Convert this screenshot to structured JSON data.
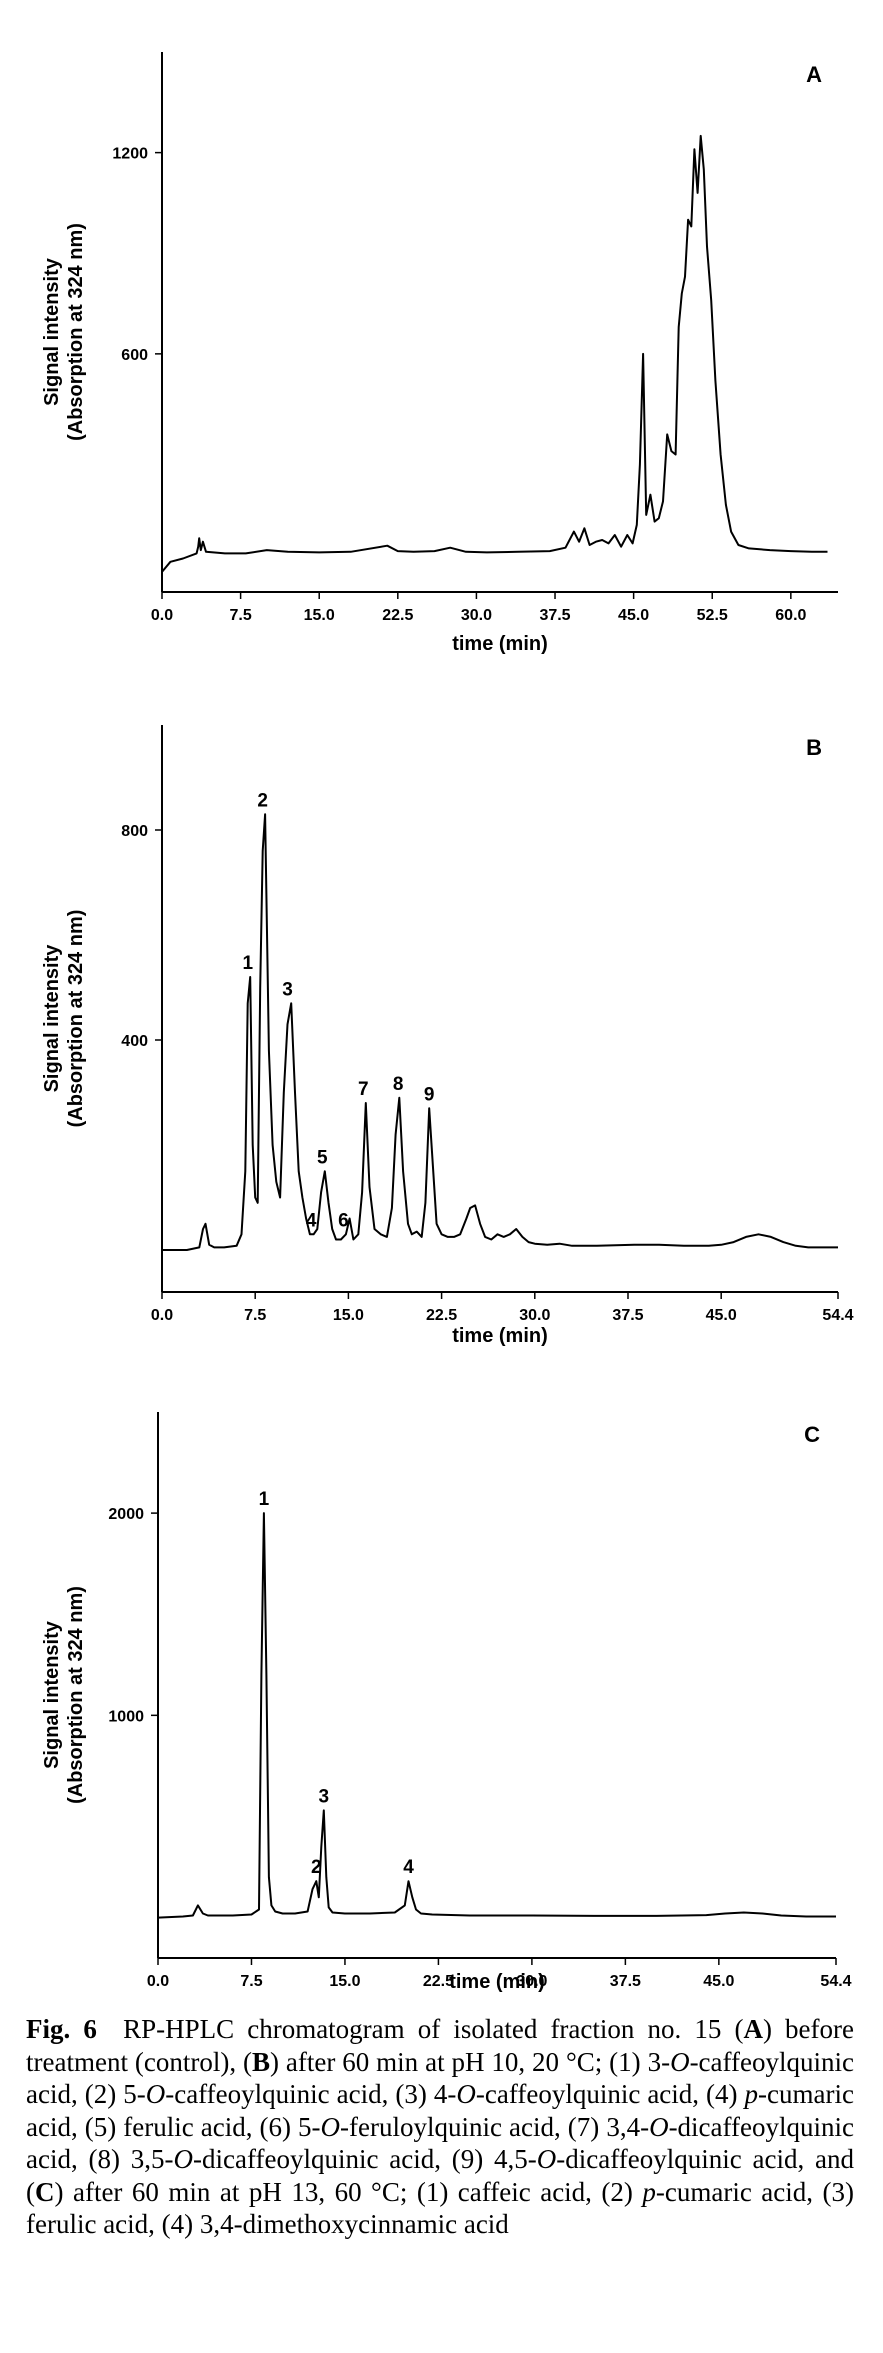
{
  "chart_data": [
    {
      "type": "line",
      "panel": "A",
      "title": "",
      "xlabel": "time (min)",
      "ylabel": [
        "Signal intensity",
        "(Absorption at 324 nm)"
      ],
      "xlim": [
        0,
        64.5
      ],
      "ylim": [
        -110,
        1500
      ],
      "x_ticks": [
        "0.0",
        "7.5",
        "15.0",
        "22.5",
        "30.0",
        "37.5",
        "45.0",
        "52.5",
        "60.0"
      ],
      "y_ticks": [
        "600",
        "1200"
      ],
      "x": [
        0,
        0.8,
        2,
        3.3,
        3.45,
        3.55,
        3.7,
        3.9,
        4.2,
        6,
        8,
        10,
        12,
        15,
        18,
        21.5,
        22.5,
        24,
        26,
        27.5,
        29,
        31,
        34,
        37,
        38.5,
        39.3,
        39.8,
        40.3,
        40.8,
        41.4,
        42,
        42.6,
        43.2,
        43.8,
        44.4,
        44.9,
        45.3,
        45.6,
        45.9,
        46.2,
        46.6,
        47,
        47.4,
        47.8,
        48.2,
        48.6,
        49,
        49.3,
        49.6,
        49.9,
        50.2,
        50.5,
        50.8,
        51.1,
        51.4,
        51.7,
        52,
        52.4,
        52.8,
        53.3,
        53.8,
        54.3,
        55,
        56,
        58,
        60,
        62,
        63.5
      ],
      "values": [
        -50,
        -20,
        -10,
        5,
        25,
        50,
        15,
        40,
        10,
        5,
        5,
        15,
        10,
        8,
        10,
        28,
        12,
        10,
        12,
        22,
        10,
        8,
        10,
        12,
        22,
        70,
        40,
        80,
        30,
        40,
        45,
        35,
        60,
        25,
        60,
        35,
        90,
        270,
        600,
        120,
        180,
        100,
        110,
        160,
        360,
        310,
        300,
        680,
        780,
        830,
        1000,
        980,
        1210,
        1080,
        1250,
        1150,
        920,
        760,
        520,
        300,
        150,
        70,
        30,
        20,
        15,
        12,
        10,
        10
      ],
      "panel_label": "A"
    },
    {
      "type": "line",
      "panel": "B",
      "title": "",
      "xlabel": "time (min)",
      "ylabel": [
        "Signal intensity",
        "(Absorption at 324 nm)"
      ],
      "xlim": [
        0,
        54.4
      ],
      "ylim": [
        -80,
        1000
      ],
      "x_ticks": [
        "0.0",
        "7.5",
        "15.0",
        "22.5",
        "30.0",
        "37.5",
        "45.0",
        "54.4"
      ],
      "y_ticks": [
        "400",
        "800"
      ],
      "x": [
        0,
        2,
        3,
        3.3,
        3.5,
        3.8,
        4.2,
        5,
        6,
        6.4,
        6.7,
        6.9,
        7.1,
        7.3,
        7.5,
        7.7,
        7.9,
        8.1,
        8.3,
        8.6,
        8.9,
        9.2,
        9.5,
        9.8,
        10.1,
        10.4,
        10.7,
        11,
        11.3,
        11.6,
        11.9,
        12.2,
        12.5,
        12.8,
        13.1,
        13.4,
        13.7,
        14,
        14.4,
        14.8,
        15.1,
        15.4,
        15.8,
        16.1,
        16.4,
        16.7,
        17.1,
        17.6,
        18.1,
        18.5,
        18.8,
        19.1,
        19.4,
        19.8,
        20.1,
        20.5,
        20.9,
        21.2,
        21.5,
        21.8,
        22.1,
        22.5,
        23,
        23.5,
        24,
        24.5,
        24.8,
        25.2,
        25.6,
        26,
        26.5,
        27,
        27.5,
        28,
        28.5,
        29,
        29.5,
        30,
        31,
        32,
        33,
        35,
        38,
        40,
        42,
        44,
        45,
        46,
        47,
        48,
        49,
        50,
        51,
        52,
        53,
        54.4
      ],
      "values": [
        0,
        0,
        5,
        40,
        50,
        10,
        5,
        5,
        8,
        30,
        150,
        470,
        520,
        200,
        100,
        90,
        500,
        760,
        830,
        380,
        200,
        130,
        100,
        300,
        430,
        470,
        300,
        150,
        100,
        60,
        30,
        30,
        40,
        110,
        150,
        90,
        40,
        20,
        20,
        30,
        60,
        20,
        30,
        110,
        280,
        120,
        40,
        30,
        25,
        80,
        220,
        290,
        150,
        50,
        30,
        35,
        25,
        90,
        270,
        160,
        50,
        30,
        25,
        25,
        30,
        60,
        80,
        85,
        50,
        25,
        20,
        30,
        25,
        30,
        40,
        25,
        15,
        12,
        10,
        12,
        8,
        8,
        10,
        10,
        8,
        8,
        10,
        15,
        25,
        30,
        25,
        15,
        8,
        5,
        5,
        5
      ],
      "data_labels": [
        {
          "label": "1",
          "x": 6.9
        },
        {
          "label": "2",
          "x": 8.1
        },
        {
          "label": "3",
          "x": 10.1
        },
        {
          "label": "4",
          "x": 12.0
        },
        {
          "label": "5",
          "x": 12.9
        },
        {
          "label": "6",
          "x": 14.6
        },
        {
          "label": "7",
          "x": 16.2
        },
        {
          "label": "8",
          "x": 19.0
        },
        {
          "label": "9",
          "x": 21.5
        }
      ],
      "panel_label": "B"
    },
    {
      "type": "line",
      "panel": "C",
      "title": "",
      "xlabel": "time (min)",
      "ylabel": [
        "Signal intensity",
        "(Absorption at 324 nm)"
      ],
      "xlim": [
        0,
        54.4
      ],
      "ylim": [
        -200,
        2500
      ],
      "x_ticks": [
        "0.0",
        "7.5",
        "15.0",
        "22.5",
        "30.0",
        "37.5",
        "45.0",
        "54.4"
      ],
      "y_ticks": [
        "1000",
        "2000"
      ],
      "x": [
        0,
        2,
        2.8,
        3.2,
        3.6,
        4,
        6,
        7.5,
        8.1,
        8.3,
        8.5,
        8.7,
        8.9,
        9.1,
        9.4,
        10,
        11,
        12,
        12.4,
        12.7,
        12.9,
        13.1,
        13.3,
        13.5,
        13.7,
        14,
        15,
        17,
        19,
        19.8,
        20.1,
        20.4,
        20.7,
        21.1,
        22,
        25,
        30,
        35,
        40,
        44,
        45.5,
        47,
        48.5,
        50,
        52,
        54.4
      ],
      "values": [
        0,
        5,
        10,
        60,
        20,
        10,
        10,
        15,
        40,
        1200,
        2000,
        1200,
        200,
        60,
        30,
        20,
        20,
        30,
        140,
        180,
        100,
        350,
        530,
        200,
        50,
        25,
        20,
        20,
        25,
        60,
        180,
        100,
        40,
        20,
        15,
        10,
        10,
        8,
        8,
        12,
        20,
        25,
        20,
        10,
        5,
        5
      ],
      "data_labels": [
        {
          "label": "1",
          "x": 8.5
        },
        {
          "label": "2",
          "x": 12.7
        },
        {
          "label": "3",
          "x": 13.3
        },
        {
          "label": "4",
          "x": 20.1
        }
      ],
      "panel_label": "C"
    }
  ],
  "caption": {
    "label": "Fig. 6",
    "segments": [
      {
        "t": "RP-HPLC chromatogram of isolated fraction no. 15 ("
      },
      {
        "t": "A",
        "b": true
      },
      {
        "t": ") before treatment (control), ("
      },
      {
        "t": "B",
        "b": true
      },
      {
        "t": ") after 60 min at pH 10, 20 °C; (1) 3-"
      },
      {
        "t": "O",
        "i": true
      },
      {
        "t": "-caffeoylquinic acid, (2) 5-"
      },
      {
        "t": "O",
        "i": true
      },
      {
        "t": "-caffeoylquinic acid, (3) 4-"
      },
      {
        "t": "O",
        "i": true
      },
      {
        "t": "-caffeoylquinic acid, (4) "
      },
      {
        "t": "p",
        "i": true
      },
      {
        "t": "-cumaric acid, (5) ferulic acid, (6) 5-"
      },
      {
        "t": "O",
        "i": true
      },
      {
        "t": "-feruloylquinic acid, (7) 3,4-"
      },
      {
        "t": "O",
        "i": true
      },
      {
        "t": "-dicaffeoylquinic acid, (8) 3,5-"
      },
      {
        "t": "O",
        "i": true
      },
      {
        "t": "-dicaffeoylquinic acid, (9) 4,5-"
      },
      {
        "t": "O",
        "i": true
      },
      {
        "t": "-dicaffeoylquinic acid, and ("
      },
      {
        "t": "C",
        "b": true
      },
      {
        "t": ") after 60 min at pH 13, 60 °C; (1) caffeic acid, (2) "
      },
      {
        "t": "p",
        "i": true
      },
      {
        "t": "-cumaric acid, (3) ferulic acid, (4) 3,4-dimethoxycinnamic acid"
      }
    ]
  }
}
